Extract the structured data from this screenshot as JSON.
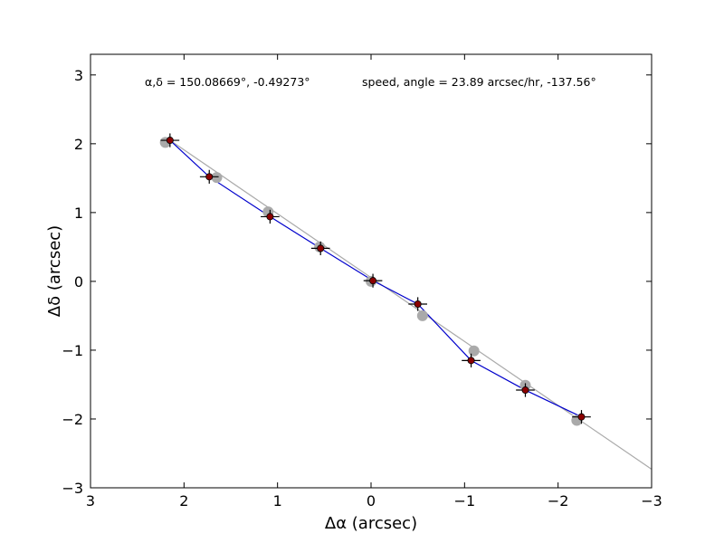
{
  "chart_data": {
    "type": "scatter",
    "title": "",
    "xlabel": "Δα (arcsec)",
    "ylabel": "Δδ (arcsec)",
    "xlim": [
      3,
      -3
    ],
    "ylim": [
      -3,
      3.3
    ],
    "x_ticks": [
      3,
      2,
      1,
      0,
      -1,
      -2,
      -3
    ],
    "x_tick_labels": [
      "3",
      "2",
      "1",
      "0",
      "−1",
      "−2",
      "−3"
    ],
    "y_ticks": [
      3,
      2,
      1,
      0,
      -1,
      -2,
      -3
    ],
    "y_tick_labels": [
      "3",
      "2",
      "1",
      "0",
      "−1",
      "−2",
      "−3"
    ],
    "grid": false,
    "annotations": {
      "position": "α,δ = 150.08669°, -0.49273°",
      "motion": "speed, angle = 23.89 arcsec/hr, -137.56°"
    },
    "series": [
      {
        "kind": "line",
        "color": "#aaaaaa",
        "points": [
          [
            2.15,
            2.05
          ],
          [
            -3.0,
            -2.73
          ]
        ]
      },
      {
        "kind": "scatter",
        "color": "#aaaaaa",
        "points": [
          [
            2.2,
            2.02
          ],
          [
            1.65,
            1.51
          ],
          [
            1.1,
            1.01
          ],
          [
            0.55,
            0.5
          ],
          [
            0.0,
            0.0
          ],
          [
            -0.55,
            -0.5
          ],
          [
            -1.1,
            -1.01
          ],
          [
            -1.65,
            -1.51
          ],
          [
            -2.2,
            -2.02
          ]
        ]
      },
      {
        "kind": "line+errorbar",
        "color": "#0000cc",
        "marker_color": "#8b0000",
        "xerr": 0.1,
        "yerr": 0.1,
        "points": [
          [
            2.15,
            2.05
          ],
          [
            1.73,
            1.52
          ],
          [
            1.08,
            0.94
          ],
          [
            0.54,
            0.48
          ],
          [
            -0.02,
            0.01
          ],
          [
            -0.5,
            -0.33
          ],
          [
            -1.07,
            -1.15
          ],
          [
            -1.65,
            -1.58
          ],
          [
            -2.25,
            -1.97
          ]
        ]
      }
    ]
  }
}
